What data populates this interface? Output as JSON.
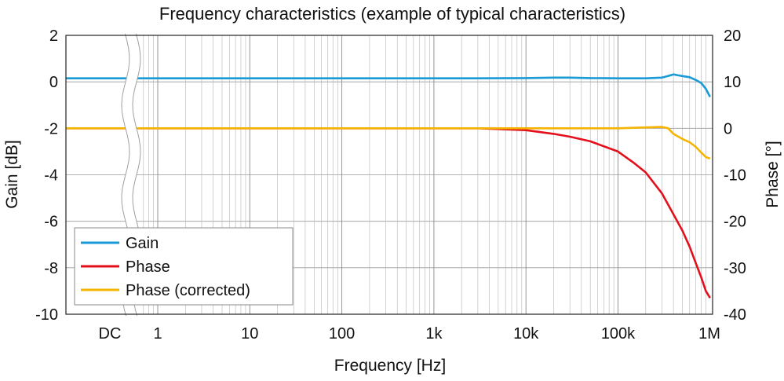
{
  "chart_data": {
    "type": "line",
    "title": "Frequency characteristics (example of typical characteristics)",
    "xlabel": "Frequency [Hz]",
    "ylabel_left": "Gain [dB]",
    "ylabel_right": "Phase [°]",
    "x_scale": "log",
    "x_ticks": [
      {
        "label": "DC",
        "value": null
      },
      {
        "label": "1",
        "value": 1
      },
      {
        "label": "10",
        "value": 10
      },
      {
        "label": "100",
        "value": 100
      },
      {
        "label": "1k",
        "value": 1000
      },
      {
        "label": "10k",
        "value": 10000
      },
      {
        "label": "100k",
        "value": 100000
      },
      {
        "label": "1M",
        "value": 1000000
      }
    ],
    "ylim_left": [
      -10,
      2
    ],
    "yticks_left": [
      "2",
      "0",
      "-2",
      "-4",
      "-6",
      "-8",
      "-10"
    ],
    "ylim_right": [
      -40,
      20
    ],
    "yticks_right": [
      "20",
      "10",
      "0",
      "-10",
      "-20",
      "-30",
      "-40"
    ],
    "grid": true,
    "legend": "bottom-left",
    "series": [
      {
        "name": "Gain",
        "axis": "left",
        "color": "#1a9ad6",
        "x": [
          "DC",
          0.7,
          1,
          3,
          10,
          30,
          100,
          300,
          1000,
          3000,
          10000,
          20000,
          30000,
          50000,
          100000,
          200000,
          300000,
          350000,
          400000,
          450000,
          500000,
          600000,
          700000,
          800000,
          900000,
          1000000
        ],
        "y": [
          0.15,
          0.15,
          0.15,
          0.15,
          0.15,
          0.15,
          0.15,
          0.15,
          0.15,
          0.15,
          0.16,
          0.18,
          0.18,
          0.16,
          0.15,
          0.15,
          0.18,
          0.25,
          0.32,
          0.28,
          0.25,
          0.2,
          0.08,
          -0.05,
          -0.3,
          -0.65
        ]
      },
      {
        "name": "Phase",
        "axis": "right",
        "color": "#e3101c",
        "x": [
          "DC",
          0.7,
          1,
          10,
          100,
          1000,
          3000,
          10000,
          20000,
          30000,
          50000,
          100000,
          150000,
          200000,
          300000,
          400000,
          500000,
          600000,
          700000,
          800000,
          900000,
          1000000
        ],
        "y": [
          0,
          0,
          0,
          0,
          0,
          0,
          0,
          -0.4,
          -1.2,
          -1.8,
          -2.8,
          -5,
          -7.5,
          -9.5,
          -14,
          -18.5,
          -22,
          -25.5,
          -29,
          -32,
          -35,
          -36.5
        ]
      },
      {
        "name": "Phase (corrected)",
        "axis": "right",
        "color": "#f5b400",
        "x": [
          "DC",
          0.7,
          1,
          10,
          100,
          1000,
          10000,
          30000,
          100000,
          200000,
          300000,
          350000,
          400000,
          500000,
          600000,
          700000,
          800000,
          900000,
          1000000
        ],
        "y": [
          0,
          0,
          0,
          0,
          0,
          0,
          0,
          0,
          0,
          0.2,
          0.3,
          0,
          -1.2,
          -2.3,
          -3,
          -4,
          -5.2,
          -6.2,
          -6.5
        ]
      }
    ]
  }
}
